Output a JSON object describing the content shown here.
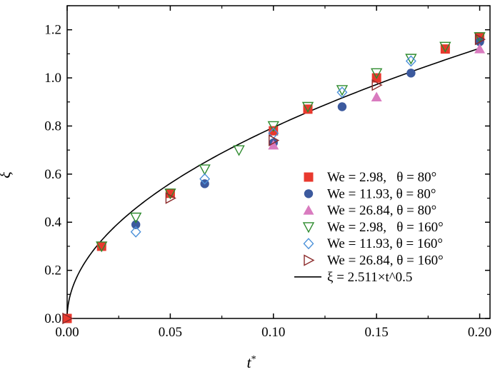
{
  "chart_data": {
    "type": "scatter",
    "title": "",
    "xlabel": "t*",
    "ylabel": "ξ",
    "xlim": [
      0.0,
      0.205
    ],
    "ylim": [
      0.0,
      1.3
    ],
    "x_ticks": [
      "0.00",
      "0.05",
      "0.10",
      "0.15",
      "0.20"
    ],
    "y_ticks": [
      "0.0",
      "0.2",
      "0.4",
      "0.6",
      "0.8",
      "1.0",
      "1.2"
    ],
    "grid": false,
    "legend_position": "lower-right",
    "series": [
      {
        "name": "We = 2.98,   θ = 80°",
        "marker": "filled-square",
        "color": "#e8392e",
        "x": [
          0.0,
          0.0167,
          0.05,
          0.1,
          0.1167,
          0.15,
          0.1833,
          0.2
        ],
        "y": [
          0.0,
          0.3,
          0.52,
          0.78,
          0.87,
          1.0,
          1.12,
          1.17
        ]
      },
      {
        "name": "We = 11.93, θ = 80°",
        "marker": "filled-circle",
        "color": "#3c5a9e",
        "x": [
          0.0333,
          0.0667,
          0.1,
          0.1333,
          0.1667,
          0.2
        ],
        "y": [
          0.39,
          0.56,
          0.73,
          0.88,
          1.02,
          1.15
        ]
      },
      {
        "name": "We = 26.84, θ = 80°",
        "marker": "filled-triangle-up",
        "color": "#d97bbf",
        "x": [
          0.1,
          0.15,
          0.2
        ],
        "y": [
          0.72,
          0.92,
          1.12
        ]
      },
      {
        "name": "We = 2.98,   θ = 160°",
        "marker": "open-triangle-down",
        "color": "#2e8b2e",
        "x": [
          0.0167,
          0.0333,
          0.05,
          0.0667,
          0.0833,
          0.1,
          0.1167,
          0.1333,
          0.15,
          0.1667,
          0.1833,
          0.2
        ],
        "y": [
          0.3,
          0.42,
          0.52,
          0.62,
          0.7,
          0.8,
          0.88,
          0.95,
          1.02,
          1.08,
          1.13,
          1.17
        ]
      },
      {
        "name": "We = 11.93, θ = 160°",
        "marker": "open-diamond",
        "color": "#4a90d9",
        "x": [
          0.0333,
          0.0667,
          0.1,
          0.1333,
          0.1667
        ],
        "y": [
          0.36,
          0.58,
          0.77,
          0.94,
          1.07
        ]
      },
      {
        "name": "We = 26.84, θ = 160°",
        "marker": "open-triangle-right",
        "color": "#8b2a2a",
        "x": [
          0.0,
          0.05,
          0.1,
          0.15,
          0.2
        ],
        "y": [
          0.0,
          0.5,
          0.74,
          0.97,
          1.16
        ]
      }
    ],
    "fit": {
      "name": "ξ = 2.511×t^0.5",
      "coefficient": 2.511,
      "exponent": 0.5,
      "color": "#000000"
    }
  }
}
